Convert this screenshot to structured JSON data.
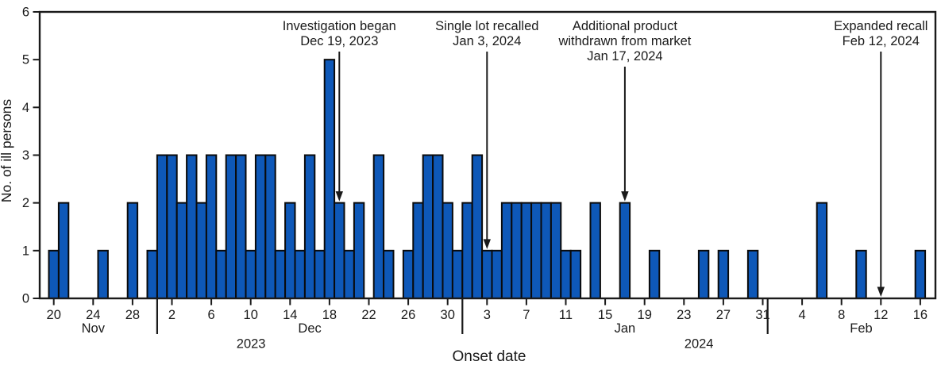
{
  "chart_data": {
    "type": "bar",
    "title": "",
    "xlabel": "Onset date",
    "ylabel": "No. of ill persons",
    "ylim": [
      0,
      6
    ],
    "yticks": [
      0,
      1,
      2,
      3,
      4,
      5,
      6
    ],
    "grid": false,
    "legend": null,
    "bar_color": "#0e58b8",
    "bar_edge_color": "#0a0a0a",
    "ink_color": "#1a1a1a",
    "x_unit": "day",
    "x_tick_step_days": 4,
    "months": [
      {
        "label": "Nov",
        "year": "2023",
        "start_day": 20,
        "tick_labels": [
          20,
          24,
          28
        ],
        "counts": [
          1,
          2,
          0,
          0,
          0,
          1,
          0,
          0,
          2,
          0,
          1
        ]
      },
      {
        "label": "Dec",
        "year": "2023",
        "start_day": 1,
        "tick_labels": [
          2,
          6,
          10,
          14,
          18,
          22,
          26,
          30
        ],
        "counts": [
          3,
          3,
          2,
          3,
          2,
          3,
          1,
          3,
          3,
          1,
          3,
          3,
          1,
          2,
          1,
          3,
          1,
          5,
          2,
          1,
          2,
          0,
          3,
          1,
          0,
          1,
          2,
          3,
          3,
          2,
          1
        ]
      },
      {
        "label": "Jan",
        "year": "2024",
        "start_day": 1,
        "tick_labels": [
          3,
          7,
          11,
          15,
          19,
          23,
          27,
          31
        ],
        "counts": [
          2,
          3,
          1,
          1,
          2,
          2,
          2,
          2,
          2,
          2,
          1,
          1,
          0,
          2,
          0,
          0,
          2,
          0,
          0,
          1,
          0,
          0,
          0,
          0,
          1,
          0,
          1,
          0,
          0,
          1,
          0
        ]
      },
      {
        "label": "Feb",
        "year": "2024",
        "start_day": 1,
        "tick_labels": [
          4,
          8,
          12,
          16
        ],
        "counts": [
          0,
          0,
          0,
          0,
          0,
          2,
          0,
          0,
          0,
          1,
          0,
          0,
          0,
          0,
          0,
          1
        ]
      }
    ],
    "year_labels": [
      "2023",
      "2024"
    ],
    "annotations": [
      {
        "lines": [
          "Investigation began",
          "Dec 19, 2023"
        ],
        "month": "Dec",
        "day": 19,
        "points_to_value": 2
      },
      {
        "lines": [
          "Single lot recalled",
          "Jan 3, 2024"
        ],
        "month": "Jan",
        "day": 3,
        "points_to_value": 1
      },
      {
        "lines": [
          "Additional product",
          "withdrawn from market",
          "Jan 17, 2024"
        ],
        "month": "Jan",
        "day": 17,
        "points_to_value": 2
      },
      {
        "lines": [
          "Expanded recall",
          "Feb 12, 2024"
        ],
        "month": "Feb",
        "day": 12,
        "points_to_value": 0
      }
    ]
  }
}
